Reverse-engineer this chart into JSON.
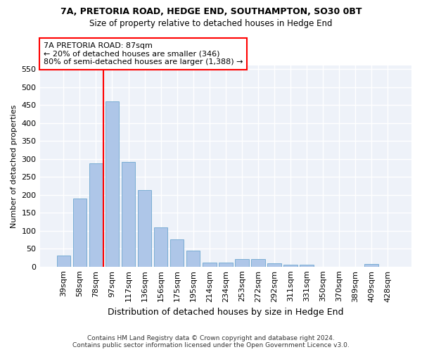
{
  "title": "7A, PRETORIA ROAD, HEDGE END, SOUTHAMPTON, SO30 0BT",
  "subtitle": "Size of property relative to detached houses in Hedge End",
  "xlabel": "Distribution of detached houses by size in Hedge End",
  "ylabel": "Number of detached properties",
  "categories": [
    "39sqm",
    "58sqm",
    "78sqm",
    "97sqm",
    "117sqm",
    "136sqm",
    "156sqm",
    "175sqm",
    "195sqm",
    "214sqm",
    "234sqm",
    "253sqm",
    "272sqm",
    "292sqm",
    "311sqm",
    "331sqm",
    "350sqm",
    "370sqm",
    "389sqm",
    "409sqm",
    "428sqm"
  ],
  "values": [
    30,
    190,
    287,
    460,
    292,
    213,
    110,
    75,
    45,
    12,
    12,
    20,
    20,
    9,
    5,
    5,
    0,
    0,
    0,
    7,
    0
  ],
  "bar_color": "#aec6e8",
  "bar_edgecolor": "#7aadd4",
  "vline_color": "red",
  "annotation_box_line1": "7A PRETORIA ROAD: 87sqm",
  "annotation_box_line2": "← 20% of detached houses are smaller (346)",
  "annotation_box_line3": "80% of semi-detached houses are larger (1,388) →",
  "box_edgecolor": "red",
  "bg_color": "#eef2f9",
  "grid_color": "#ffffff",
  "ylim": [
    0,
    560
  ],
  "yticks": [
    0,
    50,
    100,
    150,
    200,
    250,
    300,
    350,
    400,
    450,
    500,
    550
  ],
  "footer_line1": "Contains HM Land Registry data © Crown copyright and database right 2024.",
  "footer_line2": "Contains public sector information licensed under the Open Government Licence v3.0."
}
